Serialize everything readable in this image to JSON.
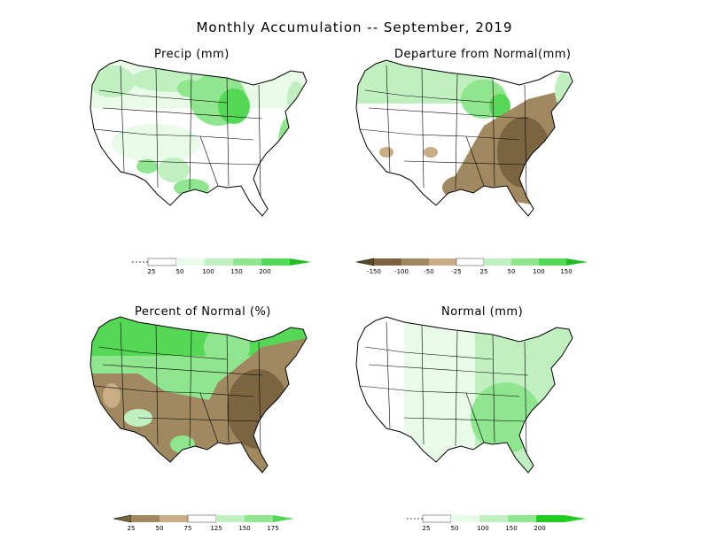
{
  "title": "Monthly Accumulation -- September, 2019",
  "colors": {
    "green_ramp": [
      "#ffffff",
      "#e8fbe8",
      "#c0f0c0",
      "#8fe68f",
      "#55d855",
      "#22bb22"
    ],
    "departure_ramp": [
      "#5a4a28",
      "#7a6540",
      "#a08860",
      "#c9ae85",
      "#ffffff",
      "#c0f0c0",
      "#8fe68f",
      "#55d855",
      "#22bb22"
    ],
    "normal_ramp": [
      "#ffffff",
      "#e8fbe8",
      "#c0f0c0",
      "#8fe68f",
      "#22cc22"
    ],
    "brown": "#a08860",
    "dark_brown": "#7a6540"
  },
  "panels": [
    {
      "id": "precip",
      "title": "Precip (mm)",
      "legend": {
        "labels": [
          "25",
          "50",
          "100",
          "150",
          "200"
        ],
        "colors": [
          "#ffffff",
          "#e8fbe8",
          "#c0f0c0",
          "#8fe68f",
          "#55d855",
          "#22bb22"
        ],
        "left_marker": "dashed"
      }
    },
    {
      "id": "departure",
      "title": "Departure from Normal(mm)",
      "legend": {
        "labels": [
          "-150",
          "-100",
          "-50",
          "-25",
          "25",
          "50",
          "100",
          "150"
        ],
        "colors": [
          "#5a4a28",
          "#7a6540",
          "#a08860",
          "#c9ae85",
          "#ffffff",
          "#c0f0c0",
          "#8fe68f",
          "#55d855",
          "#22bb22"
        ],
        "left_marker": "triangle"
      }
    },
    {
      "id": "percent",
      "title": "Percent of Normal (%)",
      "legend": {
        "labels": [
          "25",
          "50",
          "75",
          "125",
          "150",
          "175"
        ],
        "colors": [
          "#7a6540",
          "#a08860",
          "#c9ae85",
          "#ffffff",
          "#c0f0c0",
          "#8fe68f",
          "#55d855"
        ],
        "left_marker": "triangle"
      }
    },
    {
      "id": "normal",
      "title": "Normal (mm)",
      "legend": {
        "labels": [
          "25",
          "50",
          "100",
          "150",
          "200"
        ],
        "colors": [
          "#ffffff",
          "#e8fbe8",
          "#c0f0c0",
          "#8fe68f",
          "#22cc22",
          "#22cc22"
        ],
        "left_marker": "dashed"
      }
    }
  ]
}
